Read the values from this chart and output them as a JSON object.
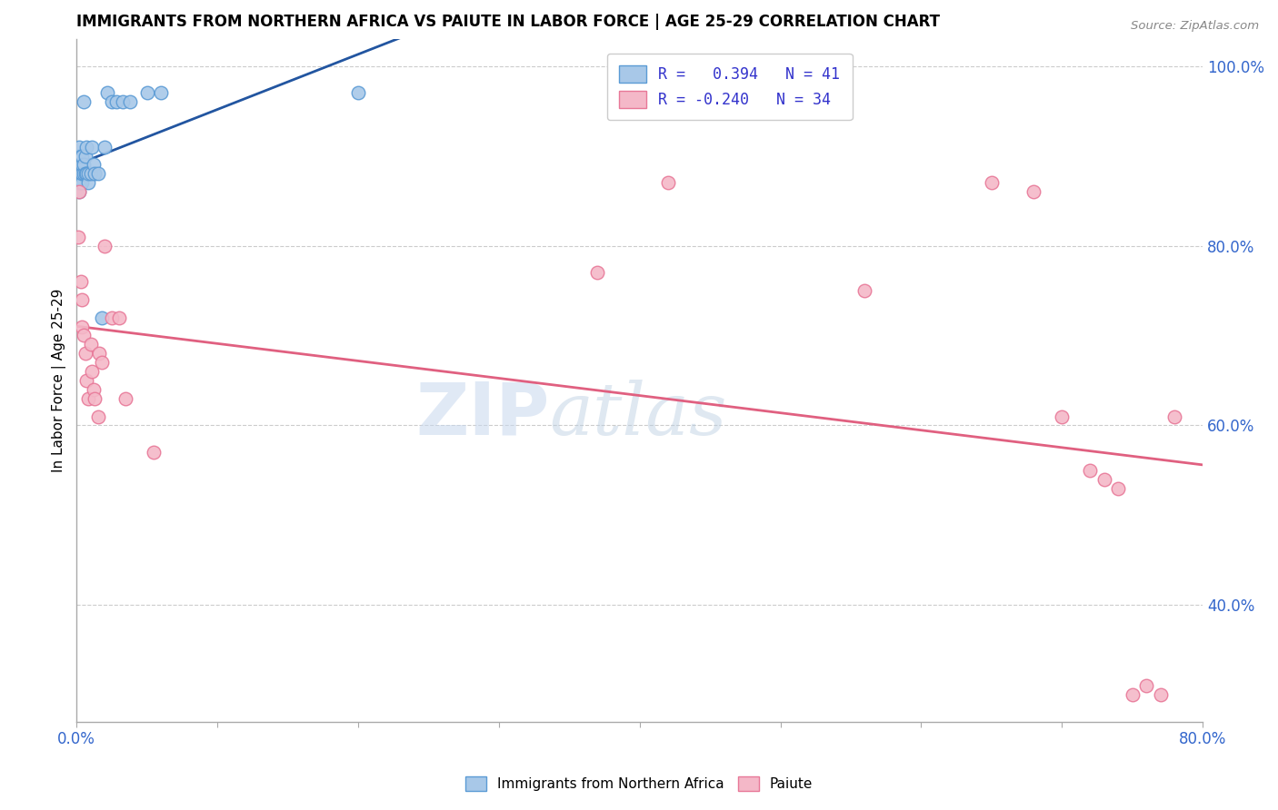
{
  "title": "IMMIGRANTS FROM NORTHERN AFRICA VS PAIUTE IN LABOR FORCE | AGE 25-29 CORRELATION CHART",
  "source": "Source: ZipAtlas.com",
  "ylabel": "In Labor Force | Age 25-29",
  "xlim": [
    0.0,
    0.8
  ],
  "ylim": [
    0.27,
    1.03
  ],
  "xticks": [
    0.0,
    0.1,
    0.2,
    0.3,
    0.4,
    0.5,
    0.6,
    0.7,
    0.8
  ],
  "yticks_right": [
    0.4,
    0.6,
    0.8,
    1.0
  ],
  "ytick_right_labels": [
    "40.0%",
    "60.0%",
    "80.0%",
    "100.0%"
  ],
  "blue_R": 0.394,
  "blue_N": 41,
  "pink_R": -0.24,
  "pink_N": 34,
  "blue_color": "#a8c8e8",
  "blue_edge": "#5b9bd5",
  "pink_color": "#f4b8c8",
  "pink_edge": "#e87898",
  "blue_line_color": "#2255a0",
  "pink_line_color": "#e06080",
  "legend_blue_label": "Immigrants from Northern Africa",
  "legend_pink_label": "Paiute",
  "watermark_zip": "ZIP",
  "watermark_atlas": "atlas",
  "blue_x": [
    0.001,
    0.001,
    0.001,
    0.002,
    0.002,
    0.002,
    0.002,
    0.002,
    0.002,
    0.003,
    0.003,
    0.003,
    0.003,
    0.004,
    0.004,
    0.004,
    0.004,
    0.005,
    0.005,
    0.005,
    0.006,
    0.006,
    0.007,
    0.007,
    0.008,
    0.008,
    0.01,
    0.011,
    0.012,
    0.013,
    0.015,
    0.018,
    0.02,
    0.022,
    0.025,
    0.028,
    0.033,
    0.038,
    0.05,
    0.06,
    0.2
  ],
  "blue_y": [
    0.88,
    0.89,
    0.9,
    0.86,
    0.87,
    0.88,
    0.89,
    0.9,
    0.91,
    0.87,
    0.88,
    0.89,
    0.9,
    0.87,
    0.88,
    0.89,
    0.9,
    0.88,
    0.89,
    0.96,
    0.88,
    0.9,
    0.88,
    0.91,
    0.87,
    0.88,
    0.88,
    0.91,
    0.89,
    0.88,
    0.88,
    0.72,
    0.91,
    0.97,
    0.96,
    0.96,
    0.96,
    0.96,
    0.97,
    0.97,
    0.97
  ],
  "pink_x": [
    0.001,
    0.002,
    0.003,
    0.004,
    0.004,
    0.005,
    0.006,
    0.007,
    0.008,
    0.01,
    0.011,
    0.012,
    0.013,
    0.015,
    0.016,
    0.018,
    0.02,
    0.025,
    0.03,
    0.035,
    0.055,
    0.37,
    0.42,
    0.56,
    0.65,
    0.68,
    0.7,
    0.72,
    0.73,
    0.74,
    0.75,
    0.76,
    0.77,
    0.78
  ],
  "pink_y": [
    0.81,
    0.86,
    0.76,
    0.74,
    0.71,
    0.7,
    0.68,
    0.65,
    0.63,
    0.69,
    0.66,
    0.64,
    0.63,
    0.61,
    0.68,
    0.67,
    0.8,
    0.72,
    0.72,
    0.63,
    0.57,
    0.77,
    0.87,
    0.75,
    0.87,
    0.86,
    0.61,
    0.55,
    0.54,
    0.53,
    0.3,
    0.31,
    0.3,
    0.61
  ]
}
